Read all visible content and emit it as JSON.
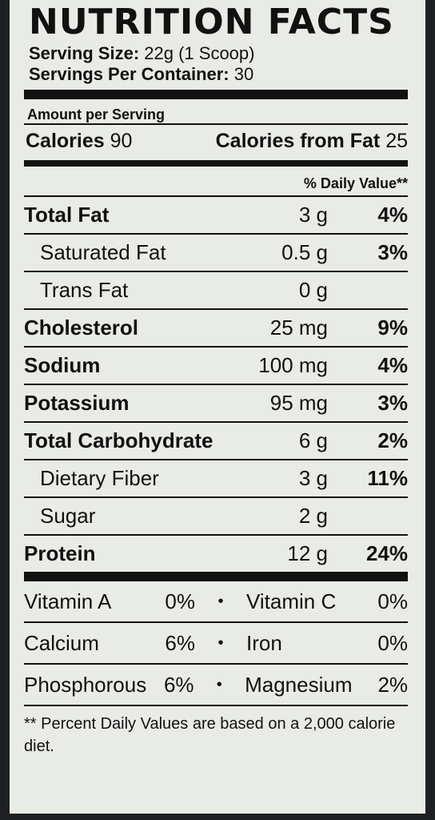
{
  "label": {
    "title": "NUTRITION FACTS",
    "serving_size_label": "Serving Size:",
    "serving_size_value": "22g (1 Scoop)",
    "servings_label": "Servings Per Container:",
    "servings_value": "30",
    "amount_per_serving": "Amount per Serving",
    "calories_label": "Calories",
    "calories_value": "90",
    "calories_fat_label": "Calories from Fat",
    "calories_fat_value": "25",
    "daily_value_header": "% Daily Value**"
  },
  "nutrients": [
    {
      "name": "Total Fat",
      "amount": "3 g",
      "dv": "4%"
    },
    {
      "name": "Saturated Fat",
      "amount": "0.5 g",
      "dv": "3%"
    },
    {
      "name": "Trans Fat",
      "amount": "0 g",
      "dv": ""
    },
    {
      "name": "Cholesterol",
      "amount": "25 mg",
      "dv": "9%"
    },
    {
      "name": "Sodium",
      "amount": "100 mg",
      "dv": "4%"
    },
    {
      "name": "Potassium",
      "amount": "95 mg",
      "dv": "3%"
    },
    {
      "name": "Total Carbohydrate",
      "amount": "6 g",
      "dv": "2%"
    },
    {
      "name": "Dietary Fiber",
      "amount": "3 g",
      "dv": "11%"
    },
    {
      "name": "Sugar",
      "amount": "2 g",
      "dv": ""
    },
    {
      "name": "Protein",
      "amount": "12 g",
      "dv": "24%"
    }
  ],
  "vitamins": [
    {
      "left_name": "Vitamin A",
      "left_pct": "0%",
      "sep": "•",
      "right_name": "Vitamin C",
      "right_pct": "0%"
    },
    {
      "left_name": "Calcium",
      "left_pct": "6%",
      "sep": "•",
      "right_name": "Iron",
      "right_pct": "0%"
    },
    {
      "left_name": "Phosphorous",
      "left_pct": "6%",
      "sep": "•",
      "right_name": "Magnesium",
      "right_pct": "2%"
    }
  ],
  "footnote": "** Percent Daily Values are based on a 2,000 calorie diet."
}
